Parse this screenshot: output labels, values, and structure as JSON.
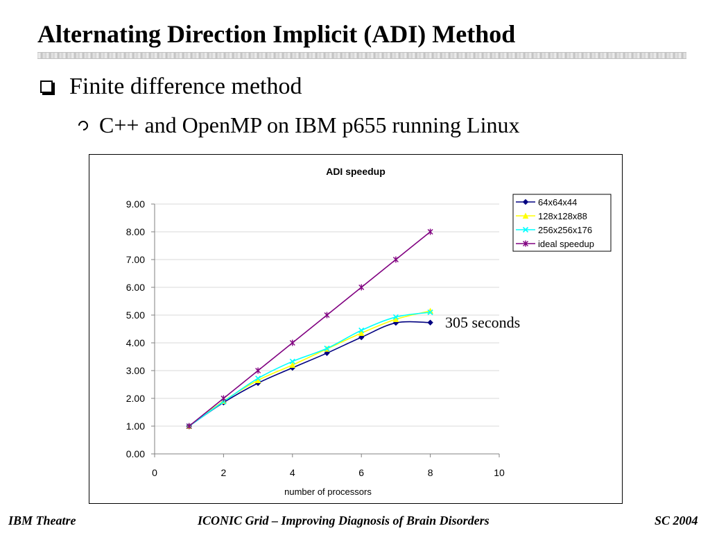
{
  "slide": {
    "title": "Alternating Direction Implicit (ADI) Method",
    "bullet1": "Finite difference method",
    "bullet2": "C++ and OpenMP on IBM p655 running Linux",
    "annotation": "305 seconds"
  },
  "footer": {
    "left": "IBM Theatre",
    "center": "ICONIC Grid – Improving Diagnosis of Brain Disorders",
    "right": "SC 2004"
  },
  "chart_data": {
    "type": "line",
    "title": "ADI speedup",
    "xlabel": "number of processors",
    "ylabel": "",
    "xlim": [
      0,
      10
    ],
    "ylim": [
      0,
      9
    ],
    "x_ticks": [
      0,
      2,
      4,
      6,
      8,
      10
    ],
    "y_ticks": [
      "0.00",
      "1.00",
      "2.00",
      "3.00",
      "4.00",
      "5.00",
      "6.00",
      "7.00",
      "8.00",
      "9.00"
    ],
    "grid": "horizontal",
    "legend_position": "top-right",
    "x": [
      1,
      2,
      3,
      4,
      5,
      6,
      7,
      8
    ],
    "series": [
      {
        "name": "64x64x44",
        "values": [
          1.0,
          1.85,
          2.55,
          3.1,
          3.63,
          4.2,
          4.72,
          4.73
        ],
        "color": "#000080",
        "marker": "diamond"
      },
      {
        "name": "128x128x88",
        "values": [
          1.0,
          1.9,
          2.65,
          3.2,
          3.78,
          4.35,
          4.85,
          5.15
        ],
        "color": "#ffff00",
        "marker": "triangle"
      },
      {
        "name": "256x256x176",
        "values": [
          1.0,
          1.88,
          2.72,
          3.33,
          3.8,
          4.45,
          4.93,
          5.1
        ],
        "color": "#00ffff",
        "marker": "x"
      },
      {
        "name": "ideal speedup",
        "values": [
          1,
          2,
          3,
          4,
          5,
          6,
          7,
          8
        ],
        "color": "#800080",
        "marker": "star"
      }
    ]
  }
}
